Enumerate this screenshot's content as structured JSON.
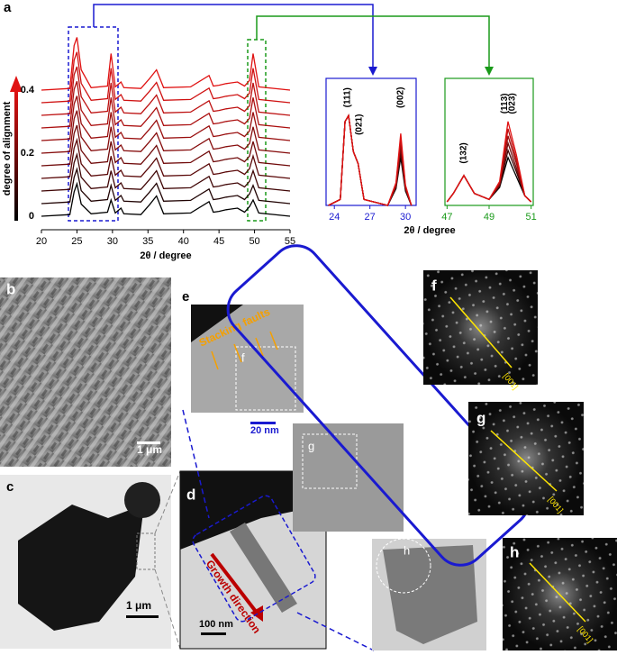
{
  "chart_data": [
    {
      "type": "line",
      "xlabel": "2θ / degree",
      "ylabel": "degree of alignment",
      "xlim": [
        20,
        55
      ],
      "xticks": [
        20,
        25,
        30,
        35,
        40,
        45,
        50,
        55
      ],
      "ylim": [
        0,
        0.4
      ],
      "yticks": [
        0,
        0.2,
        0.4
      ],
      "x": [
        20,
        24,
        24.6,
        25,
        25.6,
        27,
        29.3,
        29.8,
        30.4,
        31.2,
        31.6,
        34,
        35.2,
        36.2,
        37.2,
        41,
        43.6,
        44.2,
        45,
        46,
        47.6,
        48.6,
        49.3,
        49.8,
        50.6,
        55
      ],
      "series": [
        {
          "alignment": 0,
          "color": "#000000",
          "values": [
            0,
            2,
            30,
            40,
            15,
            3,
            5,
            20,
            4,
            10,
            3,
            2,
            14,
            25,
            3,
            4,
            18,
            5,
            6,
            8,
            10,
            5,
            12,
            20,
            4,
            0
          ]
        },
        {
          "alignment": 0.04,
          "color": "#200303",
          "values": [
            0,
            2,
            32.5,
            42.5,
            16,
            3,
            5,
            22.5,
            4,
            10,
            3,
            2,
            14,
            25,
            3,
            4,
            18,
            5,
            6,
            8,
            10,
            5,
            12,
            22.5,
            4,
            0
          ]
        },
        {
          "alignment": 0.08,
          "color": "#400606",
          "values": [
            0,
            2,
            35,
            45,
            17,
            3,
            5,
            25,
            4,
            10,
            3,
            2,
            14,
            25,
            3,
            4,
            18,
            5,
            6,
            8,
            10,
            5,
            12,
            25,
            4,
            0
          ]
        },
        {
          "alignment": 0.12,
          "color": "#5a0808",
          "values": [
            0,
            2,
            37.5,
            47.5,
            18,
            3,
            5,
            27.5,
            4,
            10,
            3,
            2,
            14,
            25,
            3,
            4,
            18,
            5,
            6,
            8,
            10,
            5,
            12,
            27.5,
            4,
            0
          ]
        },
        {
          "alignment": 0.16,
          "color": "#700a0a",
          "values": [
            0,
            2,
            40,
            50,
            19,
            3,
            5,
            30,
            4,
            10,
            3,
            2,
            14,
            25,
            3,
            4,
            18,
            5,
            6,
            8,
            10,
            5,
            12,
            30,
            4,
            0
          ]
        },
        {
          "alignment": 0.2,
          "color": "#860c0c",
          "values": [
            0,
            2,
            42.5,
            52.5,
            20,
            3,
            5,
            32.5,
            4,
            10,
            3,
            2,
            14,
            25,
            3,
            4,
            18,
            5,
            6,
            8,
            10,
            5,
            12,
            32.5,
            4,
            0
          ]
        },
        {
          "alignment": 0.24,
          "color": "#990e0e",
          "values": [
            0,
            2,
            45,
            55,
            21,
            3,
            5,
            35,
            4,
            10,
            3,
            2,
            14,
            25,
            3,
            4,
            18,
            5,
            6,
            8,
            10,
            5,
            12,
            35,
            4,
            0
          ]
        },
        {
          "alignment": 0.28,
          "color": "#ab0f0f",
          "values": [
            0,
            2,
            47.5,
            57.5,
            22,
            3,
            5,
            37.5,
            4,
            10,
            3,
            2,
            14,
            25,
            3,
            4,
            18,
            5,
            6,
            8,
            10,
            5,
            12,
            37.5,
            4,
            0
          ]
        },
        {
          "alignment": 0.32,
          "color": "#bd1010",
          "values": [
            0,
            2,
            50,
            60,
            23,
            3,
            5,
            40,
            4,
            10,
            3,
            2,
            14,
            25,
            3,
            4,
            18,
            5,
            6,
            8,
            10,
            5,
            12,
            40,
            4,
            0
          ]
        },
        {
          "alignment": 0.36,
          "color": "#cf1111",
          "values": [
            0,
            2,
            52.5,
            62.5,
            24,
            3,
            5,
            42.5,
            4,
            10,
            3,
            2,
            14,
            25,
            3,
            4,
            18,
            5,
            6,
            8,
            10,
            5,
            12,
            42.5,
            4,
            0
          ]
        },
        {
          "alignment": 0.4,
          "color": "#e01212",
          "values": [
            0,
            2,
            55,
            65,
            25,
            3,
            5,
            45,
            4,
            10,
            3,
            2,
            14,
            25,
            3,
            4,
            18,
            5,
            6,
            8,
            10,
            5,
            12,
            45,
            4,
            0
          ]
        }
      ]
    },
    {
      "type": "line",
      "color": "#1a1ad0",
      "xlim": [
        23.3,
        30.9
      ],
      "xticks": [
        24,
        27,
        30
      ],
      "ylim": [
        0,
        100
      ],
      "x": [
        23.5,
        24.5,
        24.9,
        25.2,
        25.6,
        26,
        26.5,
        28.5,
        29.2,
        29.6,
        30,
        30.5
      ],
      "annotations": [
        {
          "text": "(111)",
          "x": 25.1
        },
        {
          "text": "(021)",
          "x": 26.1
        },
        {
          "text": "(002)",
          "x": 29.6
        }
      ],
      "series": [
        {
          "color": "#000000",
          "values": [
            0,
            5,
            70,
            75,
            45,
            35,
            5,
            0,
            14,
            40,
            12,
            0
          ]
        },
        {
          "color": "#400606",
          "values": [
            0,
            5,
            70,
            75,
            45,
            35,
            5,
            0,
            15,
            44,
            13,
            0
          ]
        },
        {
          "color": "#700a0a",
          "values": [
            0,
            5,
            70,
            75,
            45,
            35,
            5,
            0,
            16,
            48,
            14,
            0
          ]
        },
        {
          "color": "#990e0e",
          "values": [
            0,
            5,
            70,
            75,
            45,
            35,
            5,
            0,
            17,
            52,
            15,
            0
          ]
        },
        {
          "color": "#bd1010",
          "values": [
            0,
            5,
            70,
            75,
            45,
            35,
            5,
            0,
            18,
            56,
            16,
            0
          ]
        },
        {
          "color": "#e01212",
          "values": [
            0,
            5,
            70,
            75,
            45,
            35,
            5,
            0,
            19,
            60,
            17,
            0
          ]
        }
      ]
    },
    {
      "type": "line",
      "color": "#1a9a1a",
      "xlim": [
        46.9,
        51.1
      ],
      "xticks": [
        47,
        49,
        51
      ],
      "ylim": [
        0,
        100
      ],
      "x": [
        47,
        47.3,
        47.8,
        48.3,
        49,
        49.5,
        49.9,
        50.3,
        50.7,
        51
      ],
      "annotations": [
        {
          "text": "(132)",
          "x": 47.8
        },
        {
          "text": "(113)",
          "x": 49.75
        },
        {
          "text": "(023)",
          "x": 50.1
        }
      ],
      "series": [
        {
          "color": "#000000",
          "values": [
            3,
            10,
            25,
            10,
            5,
            15,
            40,
            24,
            8,
            3
          ]
        },
        {
          "color": "#400606",
          "values": [
            3,
            10,
            25,
            10,
            5,
            16,
            46,
            28,
            8,
            3
          ]
        },
        {
          "color": "#700a0a",
          "values": [
            3,
            10,
            25,
            10,
            5,
            17,
            52,
            31,
            8,
            3
          ]
        },
        {
          "color": "#990e0e",
          "values": [
            3,
            10,
            25,
            10,
            5,
            18,
            58,
            35,
            8,
            3
          ]
        },
        {
          "color": "#bd1010",
          "values": [
            3,
            10,
            25,
            10,
            5,
            19,
            64,
            38,
            8,
            3
          ]
        },
        {
          "color": "#e01212",
          "values": [
            3,
            10,
            25,
            10,
            5,
            20,
            70,
            42,
            8,
            3
          ]
        }
      ]
    }
  ],
  "figure": {
    "panel_labels": [
      "a",
      "b",
      "c",
      "d",
      "e",
      "f",
      "g",
      "h"
    ],
    "scale_bars": [
      "1 μm",
      "1 μm",
      "100 nm",
      "20 nm"
    ],
    "annotations": [
      "Stacking faults",
      "Growth direction"
    ],
    "region_labels": [
      "f",
      "g",
      "h"
    ],
    "direction_labels": [
      "[001]",
      "[001]",
      "[001]"
    ]
  }
}
